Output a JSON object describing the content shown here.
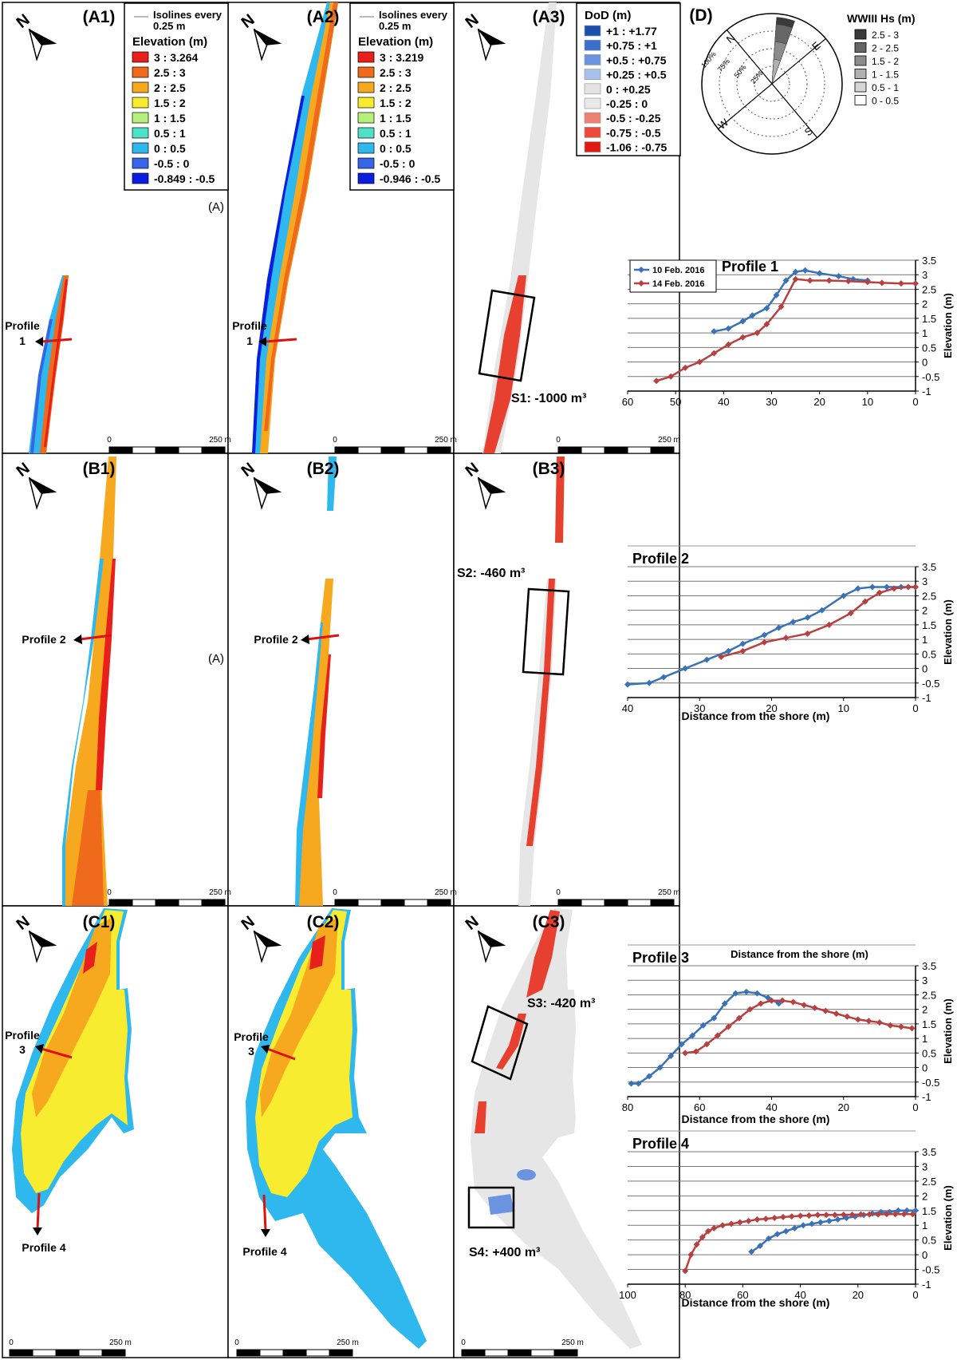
{
  "panels": [
    {
      "label": "(A1)"
    },
    {
      "label": "(A2)"
    },
    {
      "label": "(A3)"
    },
    {
      "label": "(B1)"
    },
    {
      "label": "(B2)"
    },
    {
      "label": "(B3)"
    },
    {
      "label": "(C1)"
    },
    {
      "label": "(C2)"
    },
    {
      "label": "(C3)"
    }
  ],
  "d_label": "(D)",
  "north": "N",
  "panel_a_marks": [
    "(A)",
    "(A)"
  ],
  "scalebar": {
    "start": "0",
    "end": "250 m"
  },
  "legend_a1": {
    "isolines_line1": "Isolines every",
    "isolines_line2": "0.25 m",
    "title": "Elevation (m)",
    "items": [
      {
        "label": "3 : 3.264",
        "color": "#e8201c"
      },
      {
        "label": "2.5 : 3",
        "color": "#ef6a1a"
      },
      {
        "label": "2 : 2.5",
        "color": "#f6a81f"
      },
      {
        "label": "1.5 : 2",
        "color": "#f7ec2f"
      },
      {
        "label": "1 : 1.5",
        "color": "#b6f07a"
      },
      {
        "label": "0.5 : 1",
        "color": "#4fe0c8"
      },
      {
        "label": "0 : 0.5",
        "color": "#2fb8ee"
      },
      {
        "label": "-0.5 : 0",
        "color": "#3666e8"
      },
      {
        "label": "-0.849 : -0.5",
        "color": "#0a1ee0"
      }
    ]
  },
  "legend_a2": {
    "isolines_line1": "Isolines every",
    "isolines_line2": "0.25 m",
    "title": "Elevation (m)",
    "items": [
      {
        "label": "3 : 3.219",
        "color": "#e8201c"
      },
      {
        "label": "2.5 : 3",
        "color": "#ef6a1a"
      },
      {
        "label": "2 : 2.5",
        "color": "#f6a81f"
      },
      {
        "label": "1.5 : 2",
        "color": "#f7ec2f"
      },
      {
        "label": "1 : 1.5",
        "color": "#b6f07a"
      },
      {
        "label": "0.5 : 1",
        "color": "#4fe0c8"
      },
      {
        "label": "0 : 0.5",
        "color": "#2fb8ee"
      },
      {
        "label": "-0.5 : 0",
        "color": "#3666e8"
      },
      {
        "label": "-0.946 : -0.5",
        "color": "#0a1ee0"
      }
    ]
  },
  "legend_dod": {
    "title": "DoD (m)",
    "items": [
      {
        "label": "+1 : +1.77",
        "color": "#1a4fb0"
      },
      {
        "label": "+0.75 : +1",
        "color": "#3a6fd0"
      },
      {
        "label": "+0.5 : +0.75",
        "color": "#6a94e0"
      },
      {
        "label": "+0.25 : +0.5",
        "color": "#a6c0ee"
      },
      {
        "label": "0 : +0.25",
        "color": "#e3e3e3"
      },
      {
        "label": "-0.25 : 0",
        "color": "#e9e9e9"
      },
      {
        "label": "-0.5 : -0.25",
        "color": "#f08070"
      },
      {
        "label": "-0.75 : -0.5",
        "color": "#ec4a3a"
      },
      {
        "label": "-1.06 : -0.75",
        "color": "#e01a10"
      }
    ]
  },
  "wind_rose": {
    "title": "WWIII Hs (m)",
    "directions": {
      "n": "N",
      "e": "E",
      "s": "S",
      "w": "W"
    },
    "rings": [
      "25%",
      "50%",
      "75%",
      "100%"
    ],
    "items": [
      {
        "label": "2.5 - 3",
        "color": "#3a3a3a"
      },
      {
        "label": "2 - 2.5",
        "color": "#666666"
      },
      {
        "label": "1.5 - 2",
        "color": "#8c8c8c"
      },
      {
        "label": "1 - 1.5",
        "color": "#b0b0b0"
      },
      {
        "label": "0.5 - 1",
        "color": "#d6d6d6"
      },
      {
        "label": "0 - 0.5",
        "color": "#ffffff"
      }
    ]
  },
  "sectors": [
    {
      "label": "S1: -1000 m³"
    },
    {
      "label": "S2: -460 m³"
    },
    {
      "label": "S3: -420 m³"
    },
    {
      "label": "S4: +400 m³"
    }
  ],
  "map_profiles": [
    {
      "label_line1": "Profile",
      "label_line2": "1"
    },
    {
      "label_line1": "Profile",
      "label_line2": "1"
    },
    {
      "label_line1": "Profile 2"
    },
    {
      "label_line1": "Profile 2"
    },
    {
      "label_line1": "Profile",
      "label_line2": "3"
    },
    {
      "label_line1": "Profile",
      "label_line2": "3"
    },
    {
      "label_line1": "Profile 4"
    },
    {
      "label_line1": "Profile 4"
    }
  ],
  "chart_data": [
    {
      "type": "line",
      "title": "Profile 1",
      "xlabel": "",
      "ylabel": "Elevation (m)",
      "xlim": [
        60,
        0
      ],
      "ylim": [
        -1,
        3.5
      ],
      "xticks": [
        "60",
        "50",
        "40",
        "30",
        "20",
        "10",
        "0"
      ],
      "yticks": [
        "-1",
        "-0.5",
        "0",
        "0.5",
        "1",
        "1.5",
        "2",
        "2.5",
        "3",
        "3.5"
      ],
      "legend": "top-left",
      "series": [
        {
          "name": "10 Feb. 2016",
          "color": "#3a72b8",
          "x": [
            42,
            39,
            36,
            34,
            31,
            29,
            27,
            25,
            23,
            20,
            16,
            13,
            10
          ],
          "y": [
            1.05,
            1.15,
            1.4,
            1.6,
            1.85,
            2.3,
            2.8,
            3.1,
            3.15,
            3.05,
            2.95,
            2.85,
            2.8
          ]
        },
        {
          "name": "14 Feb. 2016",
          "color": "#b84040",
          "x": [
            54,
            51,
            48,
            45,
            42,
            39,
            36,
            33,
            31,
            28,
            25,
            22,
            18,
            14,
            10,
            7,
            3,
            0
          ],
          "y": [
            -0.65,
            -0.5,
            -0.2,
            0,
            0.3,
            0.6,
            0.85,
            1.0,
            1.3,
            1.9,
            2.85,
            2.8,
            2.8,
            2.78,
            2.75,
            2.72,
            2.7,
            2.7
          ]
        }
      ]
    },
    {
      "type": "line",
      "title": "Profile 2",
      "xlabel": "Distance from the shore (m)",
      "ylabel": "Elevation (m)",
      "xlim": [
        40,
        0
      ],
      "ylim": [
        -1,
        3.5
      ],
      "xticks": [
        "40",
        "30",
        "20",
        "10",
        "0"
      ],
      "yticks": [
        "-1",
        "-0.5",
        "0",
        "0.5",
        "1",
        "1.5",
        "2",
        "2.5",
        "3",
        "3.5"
      ],
      "series": [
        {
          "name": "10 Feb. 2016",
          "color": "#3a72b8",
          "x": [
            40,
            37,
            35,
            32,
            29,
            26,
            24,
            21,
            19,
            17,
            15,
            13,
            10,
            8,
            6,
            4,
            2,
            0
          ],
          "y": [
            -0.55,
            -0.5,
            -0.3,
            0,
            0.3,
            0.6,
            0.85,
            1.15,
            1.4,
            1.6,
            1.75,
            2.0,
            2.5,
            2.75,
            2.8,
            2.8,
            2.8,
            2.8
          ]
        },
        {
          "name": "14 Feb. 2016",
          "color": "#b84040",
          "x": [
            27,
            24,
            21,
            18,
            15,
            12,
            9,
            7,
            5,
            3,
            1,
            0
          ],
          "y": [
            0.4,
            0.6,
            0.9,
            1.05,
            1.2,
            1.5,
            1.9,
            2.3,
            2.6,
            2.75,
            2.8,
            2.8
          ]
        }
      ]
    },
    {
      "type": "line",
      "title": "Profile 3",
      "xlabel": "Distance from the shore (m)",
      "top_label": "Distance from the shore (m)",
      "ylabel": "Elevation (m)",
      "xlim": [
        80,
        0
      ],
      "ylim": [
        -1,
        3.5
      ],
      "xticks": [
        "80",
        "60",
        "40",
        "20",
        "0"
      ],
      "yticks": [
        "-1",
        "-0.5",
        "0",
        "0.5",
        "1",
        "1.5",
        "2",
        "2.5",
        "3",
        "3.5"
      ],
      "series": [
        {
          "name": "10 Feb. 2016",
          "color": "#3a72b8",
          "x": [
            79,
            77,
            74,
            71,
            68,
            65,
            62,
            59,
            56,
            53,
            50,
            47,
            44,
            41,
            38
          ],
          "y": [
            -0.55,
            -0.55,
            -0.3,
            0,
            0.4,
            0.8,
            1.1,
            1.45,
            1.7,
            2.2,
            2.55,
            2.6,
            2.55,
            2.4,
            2.2
          ]
        },
        {
          "name": "14 Feb. 2016",
          "color": "#b84040",
          "x": [
            64,
            61,
            58,
            55,
            52,
            49,
            46,
            43,
            40,
            37,
            34,
            31,
            28,
            25,
            22,
            19,
            16,
            13,
            10,
            7,
            4,
            1
          ],
          "y": [
            0.5,
            0.55,
            0.8,
            1.1,
            1.4,
            1.7,
            2.0,
            2.2,
            2.3,
            2.3,
            2.25,
            2.15,
            2.05,
            1.95,
            1.85,
            1.75,
            1.65,
            1.6,
            1.55,
            1.45,
            1.4,
            1.35
          ]
        }
      ]
    },
    {
      "type": "line",
      "title": "Profile 4",
      "xlabel": "Distance from the shore (m)",
      "ylabel": "Elevation (m)",
      "xlim": [
        100,
        0
      ],
      "ylim": [
        -1,
        3.5
      ],
      "xticks": [
        "100",
        "80",
        "60",
        "40",
        "20",
        "0"
      ],
      "yticks": [
        "-1",
        "-0.5",
        "0",
        "0.5",
        "1",
        "1.5",
        "2",
        "2.5",
        "3",
        "3.5"
      ],
      "series": [
        {
          "name": "10 Feb. 2016",
          "color": "#3a72b8",
          "x": [
            57,
            54,
            51,
            48,
            45,
            42,
            39,
            36,
            33,
            30,
            27,
            24,
            21,
            18,
            15,
            12,
            9,
            6,
            3,
            0
          ],
          "y": [
            0.1,
            0.3,
            0.55,
            0.7,
            0.8,
            0.9,
            1.0,
            1.05,
            1.1,
            1.15,
            1.2,
            1.25,
            1.3,
            1.35,
            1.4,
            1.45,
            1.45,
            1.5,
            1.5,
            1.5
          ]
        },
        {
          "name": "14 Feb. 2016",
          "color": "#b84040",
          "x": [
            80,
            78,
            76,
            74,
            72,
            70,
            67,
            64,
            61,
            58,
            55,
            52,
            49,
            46,
            43,
            40,
            37,
            34,
            31,
            28,
            25,
            22,
            19,
            16,
            13,
            10,
            7,
            4,
            1
          ],
          "y": [
            -0.55,
            0,
            0.35,
            0.6,
            0.8,
            0.9,
            1.0,
            1.05,
            1.1,
            1.15,
            1.2,
            1.22,
            1.25,
            1.28,
            1.3,
            1.32,
            1.33,
            1.35,
            1.35,
            1.35,
            1.36,
            1.36,
            1.37,
            1.37,
            1.37,
            1.38,
            1.38,
            1.38,
            1.38
          ]
        }
      ]
    }
  ]
}
